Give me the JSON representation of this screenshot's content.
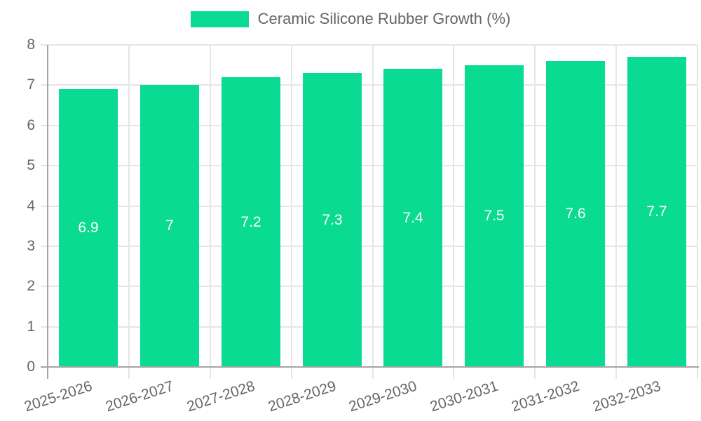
{
  "page": {
    "background": "#ffffff"
  },
  "chart_data": {
    "type": "bar",
    "title": "Ceramic Silicone Rubber Growth (%)",
    "categories": [
      "2025-2026",
      "2026-2027",
      "2027-2028",
      "2028-2029",
      "2029-2030",
      "2030-2031",
      "2031-2032",
      "2032-2033"
    ],
    "series": [
      {
        "name": "Ceramic Silicone Rubber Growth (%)",
        "values": [
          6.9,
          7,
          7.2,
          7.3,
          7.4,
          7.5,
          7.6,
          7.7
        ]
      }
    ],
    "bar_value_labels": [
      "6.9",
      "7",
      "7.2",
      "7.3",
      "7.4",
      "7.5",
      "7.6",
      "7.7"
    ],
    "xlabel": "",
    "ylabel": "",
    "ylim": [
      0,
      8
    ],
    "yticks": [
      0,
      1,
      2,
      3,
      4,
      5,
      6,
      7,
      8
    ],
    "grid": true,
    "legend_position": "top",
    "x_label_rotation_deg": -18,
    "colors": {
      "bar": "#09db92",
      "grid": "#e6e6e6",
      "axis": "#a6a6a6",
      "tick_text": "#666666",
      "legend_text": "#666666",
      "bar_label": "#ffffff",
      "background": "#ffffff"
    }
  }
}
